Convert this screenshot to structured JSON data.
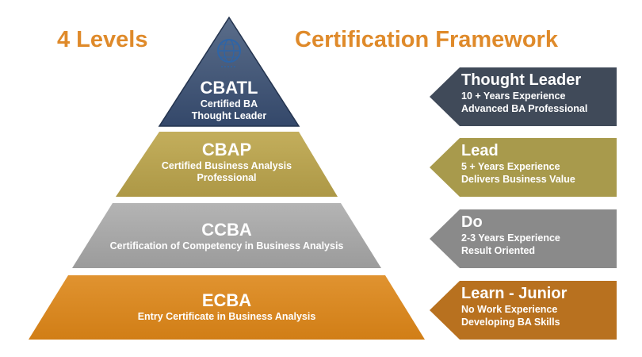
{
  "headings": {
    "left": "4 Levels",
    "right": "Certification Framework"
  },
  "colors": {
    "heading": "#df8a2a",
    "navy": "#3d5170",
    "gold": "#b7a24f",
    "gray": "#a6a6a6",
    "orange": "#d9861f"
  },
  "levels": [
    {
      "code": "CBATL",
      "line1": "Certified BA",
      "line2": "Thought Leader"
    },
    {
      "code": "CBAP",
      "line1": "Certified Business Analysis",
      "line2": "Professional"
    },
    {
      "code": "CCBA",
      "line1": "Certification of Competency in Business Analysis",
      "line2": ""
    },
    {
      "code": "ECBA",
      "line1": "Entry Certificate in Business Analysis",
      "line2": ""
    }
  ],
  "badges": [
    {
      "title": "Thought Leader",
      "line1": "10 + Years Experience",
      "line2": "Advanced BA Professional"
    },
    {
      "title": "Lead",
      "line1": "5 + Years Experience",
      "line2": "Delivers Business Value"
    },
    {
      "title": "Do",
      "line1": "2-3 Years Experience",
      "line2": "Result Oriented"
    },
    {
      "title": "Learn - Junior",
      "line1": "No Work Experience",
      "line2": "Developing BA Skills"
    }
  ],
  "logo": {
    "icon": "globe-seal-icon"
  }
}
